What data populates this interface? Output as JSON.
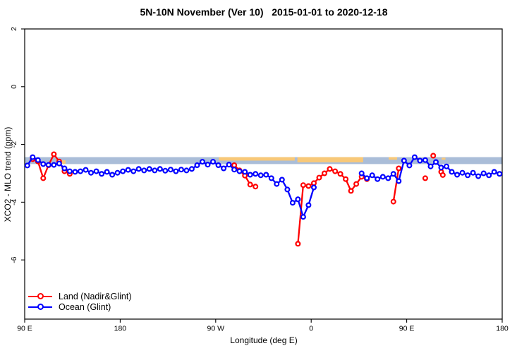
{
  "title": "5N-10N November (Ver 10)   2015-01-01 to 2020-12-18",
  "chart_data": {
    "type": "line",
    "title": "5N-10N November (Ver 10)   2015-01-01 to 2020-12-18",
    "xlabel": "Longitude (deg E)",
    "ylabel": "XCO2 - MLO trend (ppm)",
    "xlim": [
      90,
      540
    ],
    "ylim": [
      -8.05,
      2
    ],
    "grid": false,
    "x_ticks": [
      {
        "value": 90,
        "label": "90 E"
      },
      {
        "value": 180,
        "label": "180"
      },
      {
        "value": 270,
        "label": "90 W"
      },
      {
        "value": 360,
        "label": "0"
      },
      {
        "value": 450,
        "label": "90 E"
      },
      {
        "value": 540,
        "label": "180"
      }
    ],
    "y_ticks": [
      {
        "value": 2,
        "label": "2"
      },
      {
        "value": 0,
        "label": "0"
      },
      {
        "value": -2,
        "label": "-2"
      },
      {
        "value": -4,
        "label": "-4"
      },
      {
        "value": -6,
        "label": "-6"
      }
    ],
    "reference_band": {
      "ymax": -2.44,
      "ymin": -2.68,
      "color": "#aabdd8"
    },
    "highlight_patches": [
      {
        "x0": 124.5,
        "x1": 128.5,
        "ytop": -2.55,
        "ybot": -2.67,
        "color": "#f8c878"
      },
      {
        "x0": 273,
        "x1": 344.5,
        "ytop": -2.44,
        "ybot": -2.56,
        "color": "#f8c878"
      },
      {
        "x0": 347,
        "x1": 409,
        "ytop": -2.44,
        "ybot": -2.62,
        "color": "#f8c878"
      },
      {
        "x0": 433,
        "x1": 441,
        "ytop": -2.44,
        "ybot": -2.53,
        "color": "#f8c878"
      },
      {
        "x0": 459,
        "x1": 463,
        "ytop": -2.46,
        "ybot": -2.53,
        "color": "#f8c878"
      },
      {
        "x0": 483,
        "x1": 486.5,
        "ytop": -2.46,
        "ybot": -2.53,
        "color": "#f8c878"
      }
    ],
    "legend": {
      "position": "bottom-left"
    },
    "series": [
      {
        "name": "Land (Nadir&Glint)",
        "color": "#ff0000",
        "marker": "open-circle",
        "segments": [
          [
            [
              97.5,
              -2.51
            ],
            [
              102.5,
              -2.59
            ],
            [
              107.5,
              -3.17
            ],
            [
              112.5,
              -2.72
            ],
            [
              117.5,
              -2.34
            ],
            [
              122.5,
              -2.59
            ],
            [
              127.5,
              -2.93
            ],
            [
              132.5,
              -3.02
            ]
          ],
          [
            [
              287.5,
              -2.72
            ],
            [
              292.5,
              -2.9
            ],
            [
              297.5,
              -3.08
            ],
            [
              302.5,
              -3.39
            ],
            [
              307.5,
              -3.46
            ]
          ],
          [
            [
              347.5,
              -5.44
            ],
            [
              352.5,
              -3.41
            ],
            [
              357.5,
              -3.44
            ],
            [
              362.5,
              -3.34
            ],
            [
              367.5,
              -3.15
            ],
            [
              372.5,
              -3.0
            ],
            [
              377.5,
              -2.85
            ],
            [
              382.5,
              -2.93
            ],
            [
              387.5,
              -3.02
            ],
            [
              392.5,
              -3.2
            ],
            [
              397.5,
              -3.61
            ],
            [
              402.5,
              -3.37
            ],
            [
              407.5,
              -3.12
            ],
            [
              412.5,
              -3.2
            ]
          ],
          [
            [
              437.5,
              -3.98
            ],
            [
              442.5,
              -2.83
            ]
          ],
          [
            [
              467.5,
              -3.17
            ]
          ],
          [
            [
              475.0,
              -2.39
            ]
          ],
          [
            [
              482.5,
              -2.95
            ],
            [
              484.0,
              -3.06
            ]
          ]
        ]
      },
      {
        "name": "Ocean (Glint)",
        "color": "#0000ff",
        "marker": "open-circle",
        "segments": [
          [
            [
              92.5,
              -2.73
            ],
            [
              97.5,
              -2.44
            ],
            [
              102.5,
              -2.54
            ],
            [
              107.5,
              -2.68
            ],
            [
              112.5,
              -2.71
            ],
            [
              117.5,
              -2.71
            ],
            [
              122.5,
              -2.66
            ],
            [
              127.5,
              -2.83
            ],
            [
              132.5,
              -2.93
            ],
            [
              137.5,
              -2.95
            ],
            [
              142.5,
              -2.93
            ],
            [
              147.5,
              -2.88
            ],
            [
              152.5,
              -2.98
            ],
            [
              157.5,
              -2.93
            ],
            [
              162.5,
              -3.02
            ],
            [
              167.5,
              -2.95
            ],
            [
              172.5,
              -3.05
            ],
            [
              177.5,
              -2.98
            ],
            [
              182.5,
              -2.93
            ],
            [
              187.5,
              -2.88
            ],
            [
              192.5,
              -2.93
            ],
            [
              197.5,
              -2.85
            ],
            [
              202.5,
              -2.9
            ],
            [
              207.5,
              -2.85
            ],
            [
              212.5,
              -2.9
            ],
            [
              217.5,
              -2.85
            ],
            [
              222.5,
              -2.91
            ],
            [
              227.5,
              -2.87
            ],
            [
              232.5,
              -2.93
            ],
            [
              237.5,
              -2.87
            ],
            [
              242.5,
              -2.9
            ],
            [
              247.5,
              -2.85
            ],
            [
              252.5,
              -2.72
            ],
            [
              257.5,
              -2.6
            ],
            [
              262.5,
              -2.7
            ],
            [
              267.5,
              -2.6
            ],
            [
              272.5,
              -2.72
            ],
            [
              277.5,
              -2.83
            ],
            [
              282.5,
              -2.7
            ],
            [
              287.5,
              -2.87
            ],
            [
              292.5,
              -2.93
            ],
            [
              297.5,
              -2.95
            ],
            [
              302.5,
              -3.05
            ],
            [
              307.5,
              -3.02
            ],
            [
              312.5,
              -3.07
            ],
            [
              317.5,
              -3.05
            ],
            [
              322.5,
              -3.17
            ],
            [
              327.5,
              -3.37
            ],
            [
              332.5,
              -3.22
            ],
            [
              337.5,
              -3.56
            ],
            [
              342.5,
              -4.02
            ],
            [
              347.5,
              -3.9
            ],
            [
              352.5,
              -4.51
            ],
            [
              357.5,
              -4.1
            ],
            [
              362.5,
              -3.49
            ]
          ],
          [
            [
              407.5,
              -3.0
            ],
            [
              412.5,
              -3.17
            ],
            [
              417.5,
              -3.07
            ],
            [
              422.5,
              -3.2
            ],
            [
              427.5,
              -3.12
            ],
            [
              432.5,
              -3.17
            ],
            [
              437.5,
              -3.02
            ],
            [
              442.5,
              -3.27
            ],
            [
              447.5,
              -2.56
            ],
            [
              452.5,
              -2.73
            ],
            [
              457.5,
              -2.44
            ],
            [
              462.5,
              -2.56
            ],
            [
              467.5,
              -2.54
            ],
            [
              472.5,
              -2.76
            ],
            [
              477.5,
              -2.61
            ],
            [
              482.5,
              -2.8
            ],
            [
              487.5,
              -2.76
            ],
            [
              492.5,
              -2.95
            ],
            [
              497.5,
              -3.05
            ],
            [
              502.5,
              -2.98
            ],
            [
              507.5,
              -3.07
            ],
            [
              512.5,
              -2.98
            ],
            [
              517.5,
              -3.1
            ],
            [
              522.5,
              -3.0
            ],
            [
              527.5,
              -3.07
            ],
            [
              532.5,
              -2.95
            ],
            [
              537.5,
              -3.02
            ]
          ]
        ]
      }
    ]
  }
}
